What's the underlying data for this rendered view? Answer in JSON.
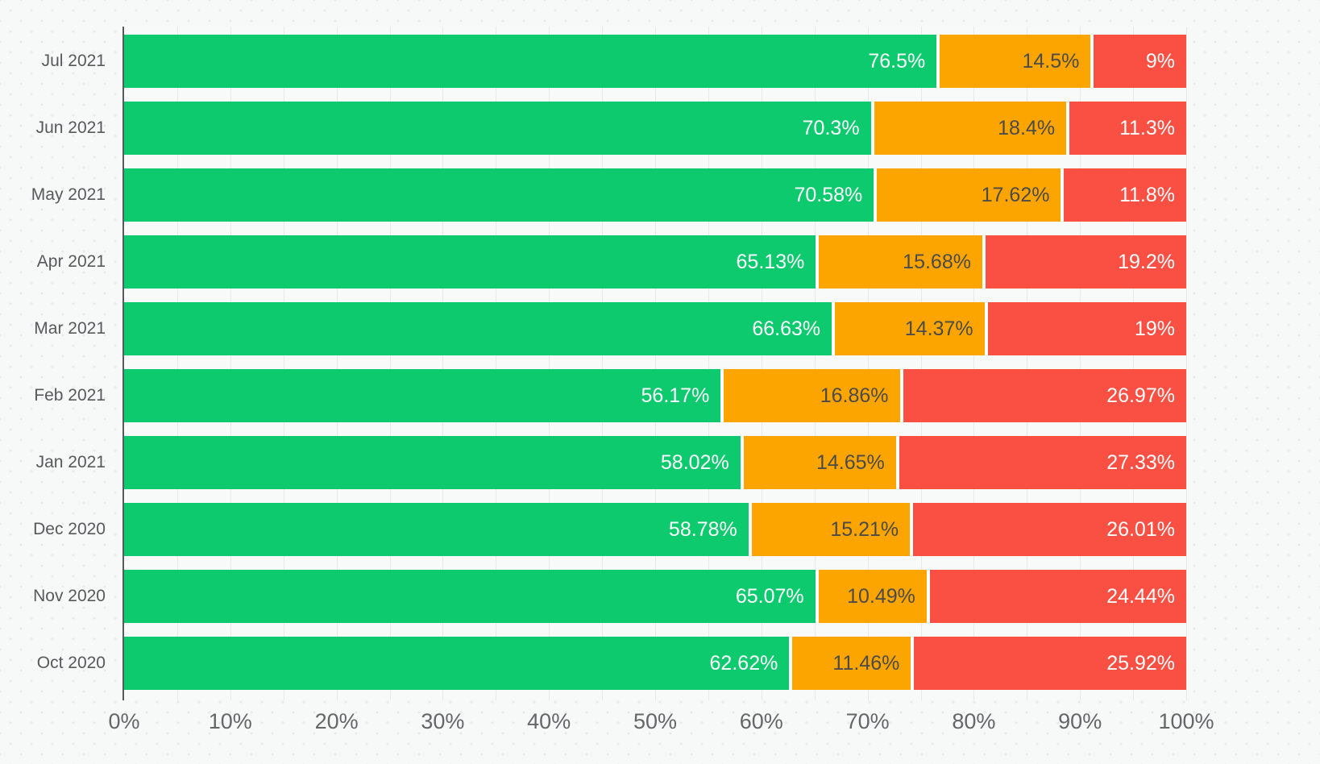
{
  "chart_data": {
    "type": "bar",
    "orientation": "horizontal",
    "stacked": true,
    "unit": "%",
    "title": "",
    "legend": "none",
    "grid": true,
    "categories": [
      "Jul 2021",
      "Jun 2021",
      "May 2021",
      "Apr 2021",
      "Mar 2021",
      "Feb 2021",
      "Jan 2021",
      "Dec 2020",
      "Nov 2020",
      "Oct 2020"
    ],
    "series": [
      {
        "name": "green",
        "color": "#0eca6e",
        "label_color": "#ffffff",
        "values": [
          76.5,
          70.3,
          70.58,
          65.13,
          66.63,
          56.17,
          58.02,
          58.78,
          65.07,
          62.62
        ],
        "labels": [
          "76.5%",
          "70.3%",
          "70.58%",
          "65.13%",
          "66.63%",
          "56.17%",
          "58.02%",
          "58.78%",
          "65.07%",
          "62.62%"
        ]
      },
      {
        "name": "orange",
        "color": "#fca400",
        "label_color": "#4b4b4b",
        "values": [
          14.5,
          18.4,
          17.62,
          15.68,
          14.37,
          16.86,
          14.65,
          15.21,
          10.49,
          11.46
        ],
        "labels": [
          "14.5%",
          "18.4%",
          "17.62%",
          "15.68%",
          "14.37%",
          "16.86%",
          "14.65%",
          "15.21%",
          "10.49%",
          "11.46%"
        ]
      },
      {
        "name": "red",
        "color": "#fa4f43",
        "label_color": "#ffffff",
        "values": [
          9,
          11.3,
          11.8,
          19.2,
          19,
          26.97,
          27.33,
          26.01,
          24.44,
          25.92
        ],
        "labels": [
          "9%",
          "11.3%",
          "11.8%",
          "19.2%",
          "19%",
          "26.97%",
          "27.33%",
          "26.01%",
          "24.44%",
          "25.92%"
        ]
      }
    ],
    "x_axis": {
      "min": 0,
      "max": 100,
      "tick_step": 10,
      "minor_step": 5,
      "ticks": [
        "0%",
        "10%",
        "20%",
        "30%",
        "40%",
        "50%",
        "60%",
        "70%",
        "80%",
        "90%",
        "100%"
      ]
    }
  },
  "colors": {
    "background": "#f7f8f8",
    "plot_background": "#f8f9f9",
    "gridline": "#e7e8e8",
    "axis_line": "#565a5e",
    "category_label": "#58595b",
    "tick_label": "#646668",
    "segment_gap": "#ffffff"
  }
}
